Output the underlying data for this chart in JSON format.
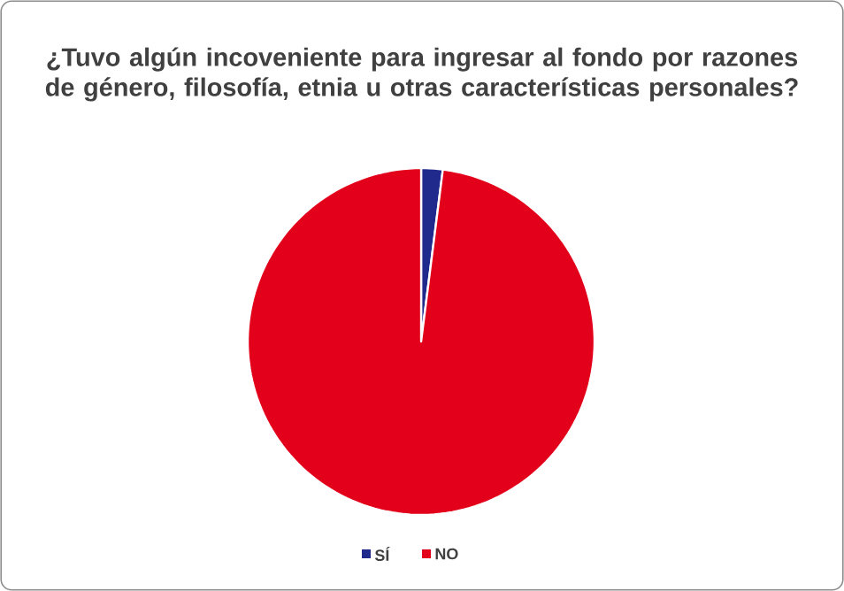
{
  "chart_data": {
    "type": "pie",
    "title": "¿Tuvo algún incoveniente para ingresar al fondo por razones de género, filosofía, etnia u otras características personales?",
    "categories": [
      "SÍ",
      "NO"
    ],
    "values": [
      2,
      98
    ],
    "colors": [
      "#1f2a8c",
      "#e3001b"
    ],
    "legend": "bottom"
  }
}
